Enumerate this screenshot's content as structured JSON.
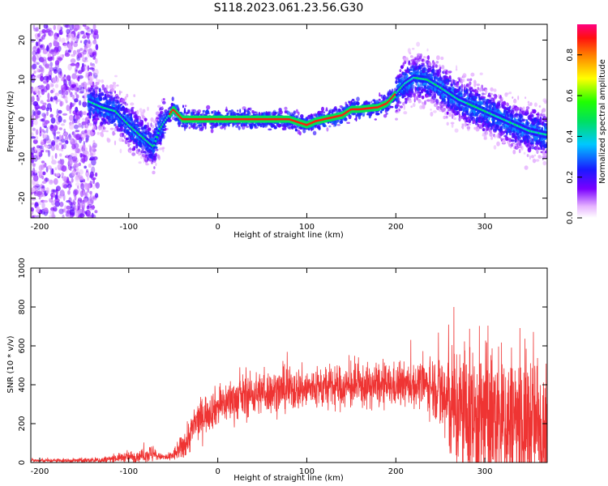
{
  "figure": {
    "title": "S118.2023.061.23.56.G30"
  },
  "chart_data": [
    {
      "type": "heatmap",
      "xlabel": "Height of straight line (km)",
      "ylabel": "Frequency (Hz)",
      "xlim": [
        -210,
        370
      ],
      "ylim": [
        -25,
        24
      ],
      "x_ticks": [
        -200,
        -100,
        0,
        100,
        200,
        300
      ],
      "y_ticks": [
        -20,
        -10,
        0,
        10,
        20
      ],
      "colorbar": {
        "label": "Normalized spectral amplitude",
        "range": [
          0,
          0.95
        ],
        "ticks": [
          "0.0",
          "0.2",
          "0.4",
          "0.6",
          "0.8"
        ]
      },
      "ridge": {
        "x": [
          -145,
          -130,
          -115,
          -100,
          -90,
          -80,
          -72,
          -65,
          -58,
          -50,
          -40,
          -20,
          0,
          20,
          40,
          60,
          80,
          100,
          110,
          120,
          140,
          150,
          160,
          180,
          190,
          200,
          210,
          220,
          235,
          250,
          270,
          290,
          310,
          330,
          350,
          370
        ],
        "y": [
          4.5,
          3,
          2,
          -1.5,
          -3.5,
          -5.5,
          -7,
          -2.5,
          0,
          2.5,
          0,
          0,
          0,
          0,
          0,
          0,
          0,
          -1.5,
          -0.5,
          0,
          1,
          2.5,
          2.5,
          3,
          4,
          6.5,
          9,
          10.5,
          10,
          8,
          5,
          3,
          1,
          -1,
          -3,
          -4
        ]
      }
    },
    {
      "type": "line",
      "xlabel": "Height of straight line (km)",
      "ylabel": "SNR (10 * v/v)",
      "xlim": [
        -210,
        370
      ],
      "ylim": [
        0,
        1000
      ],
      "x_ticks": [
        -200,
        -100,
        0,
        100,
        200,
        300
      ],
      "y_ticks": [
        0,
        200,
        400,
        600,
        800,
        1000
      ],
      "series": [
        {
          "color": "#ef3433",
          "envelope": {
            "x": [
              -210,
              -160,
              -130,
              -110,
              -95,
              -85,
              -75,
              -65,
              -55,
              -45,
              -35,
              -25,
              -15,
              0,
              15,
              30,
              50,
              80,
              120,
              160,
              200,
              230,
              245,
              255,
              270,
              290,
              310,
              330,
              350,
              370
            ],
            "base": [
              10,
              10,
              12,
              25,
              30,
              35,
              45,
              30,
              25,
              55,
              110,
              200,
              250,
              290,
              320,
              340,
              360,
              375,
              385,
              390,
              395,
              400,
              390,
              320,
              260,
              230,
              220,
              210,
              200,
              200
            ],
            "amp": [
              8,
              10,
              15,
              20,
              30,
              25,
              45,
              15,
              20,
              40,
              80,
              90,
              90,
              90,
              100,
              100,
              100,
              100,
              100,
              100,
              100,
              100,
              150,
              250,
              320,
              350,
              350,
              350,
              340,
              330
            ]
          }
        }
      ]
    }
  ]
}
